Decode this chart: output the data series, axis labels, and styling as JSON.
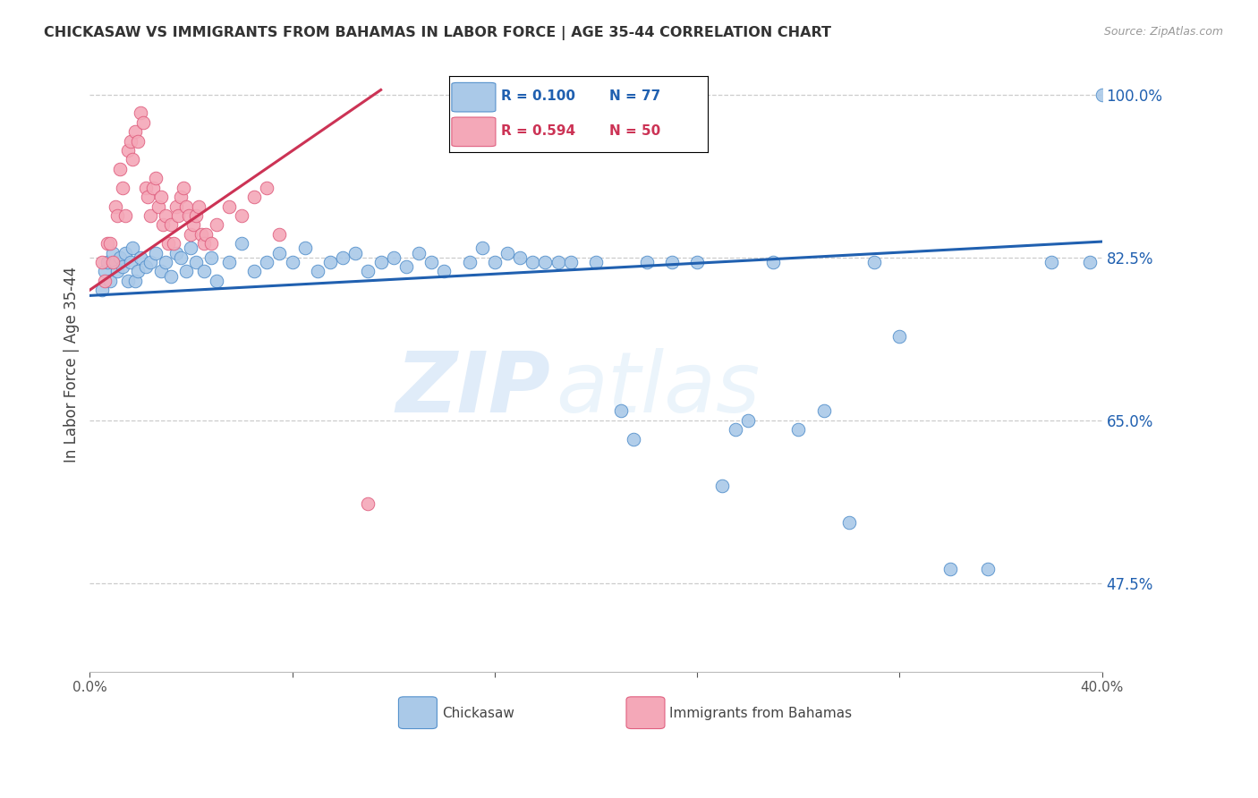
{
  "title": "CHICKASAW VS IMMIGRANTS FROM BAHAMAS IN LABOR FORCE | AGE 35-44 CORRELATION CHART",
  "source": "Source: ZipAtlas.com",
  "ylabel": "In Labor Force | Age 35-44",
  "xlim": [
    0.0,
    0.4
  ],
  "ylim": [
    0.38,
    1.04
  ],
  "yticks": [
    0.475,
    0.65,
    0.825,
    1.0
  ],
  "ytick_labels": [
    "47.5%",
    "65.0%",
    "82.5%",
    "100.0%"
  ],
  "xticks": [
    0.0,
    0.08,
    0.16,
    0.24,
    0.32,
    0.4
  ],
  "xtick_labels": [
    "0.0%",
    "",
    "",
    "",
    "",
    "40.0%"
  ],
  "blue_R": 0.1,
  "blue_N": 77,
  "pink_R": 0.594,
  "pink_N": 50,
  "blue_color": "#aac9e8",
  "pink_color": "#f4a8b8",
  "blue_edge_color": "#5591cc",
  "pink_edge_color": "#e06080",
  "blue_line_color": "#2060b0",
  "pink_line_color": "#cc3355",
  "blue_label": "Chickasaw",
  "pink_label": "Immigrants from Bahamas",
  "watermark_zip": "ZIP",
  "watermark_atlas": "atlas",
  "blue_x": [
    0.005,
    0.006,
    0.007,
    0.008,
    0.009,
    0.01,
    0.011,
    0.012,
    0.013,
    0.014,
    0.015,
    0.016,
    0.017,
    0.018,
    0.019,
    0.02,
    0.022,
    0.024,
    0.026,
    0.028,
    0.03,
    0.032,
    0.034,
    0.036,
    0.038,
    0.04,
    0.042,
    0.045,
    0.048,
    0.05,
    0.055,
    0.06,
    0.065,
    0.07,
    0.075,
    0.08,
    0.085,
    0.09,
    0.095,
    0.1,
    0.105,
    0.11,
    0.115,
    0.12,
    0.125,
    0.13,
    0.135,
    0.14,
    0.15,
    0.155,
    0.16,
    0.165,
    0.17,
    0.175,
    0.18,
    0.185,
    0.19,
    0.2,
    0.21,
    0.215,
    0.22,
    0.23,
    0.24,
    0.25,
    0.255,
    0.26,
    0.27,
    0.28,
    0.29,
    0.3,
    0.31,
    0.32,
    0.34,
    0.355,
    0.38,
    0.395,
    0.4
  ],
  "blue_y": [
    0.79,
    0.81,
    0.82,
    0.8,
    0.83,
    0.82,
    0.81,
    0.825,
    0.815,
    0.83,
    0.8,
    0.82,
    0.835,
    0.8,
    0.81,
    0.825,
    0.815,
    0.82,
    0.83,
    0.81,
    0.82,
    0.805,
    0.83,
    0.825,
    0.81,
    0.835,
    0.82,
    0.81,
    0.825,
    0.8,
    0.82,
    0.84,
    0.81,
    0.82,
    0.83,
    0.82,
    0.835,
    0.81,
    0.82,
    0.825,
    0.83,
    0.81,
    0.82,
    0.825,
    0.815,
    0.83,
    0.82,
    0.81,
    0.82,
    0.835,
    0.82,
    0.83,
    0.825,
    0.82,
    0.82,
    0.82,
    0.82,
    0.82,
    0.66,
    0.63,
    0.82,
    0.82,
    0.82,
    0.58,
    0.64,
    0.65,
    0.82,
    0.64,
    0.66,
    0.54,
    0.82,
    0.74,
    0.49,
    0.49,
    0.82,
    0.82,
    1.0
  ],
  "pink_x": [
    0.005,
    0.006,
    0.007,
    0.008,
    0.009,
    0.01,
    0.011,
    0.012,
    0.013,
    0.014,
    0.015,
    0.016,
    0.017,
    0.018,
    0.019,
    0.02,
    0.021,
    0.022,
    0.023,
    0.024,
    0.025,
    0.026,
    0.027,
    0.028,
    0.029,
    0.03,
    0.031,
    0.032,
    0.033,
    0.034,
    0.035,
    0.036,
    0.037,
    0.038,
    0.039,
    0.04,
    0.041,
    0.042,
    0.043,
    0.044,
    0.045,
    0.046,
    0.048,
    0.05,
    0.055,
    0.06,
    0.065,
    0.07,
    0.075,
    0.11
  ],
  "pink_y": [
    0.82,
    0.8,
    0.84,
    0.84,
    0.82,
    0.88,
    0.87,
    0.92,
    0.9,
    0.87,
    0.94,
    0.95,
    0.93,
    0.96,
    0.95,
    0.98,
    0.97,
    0.9,
    0.89,
    0.87,
    0.9,
    0.91,
    0.88,
    0.89,
    0.86,
    0.87,
    0.84,
    0.86,
    0.84,
    0.88,
    0.87,
    0.89,
    0.9,
    0.88,
    0.87,
    0.85,
    0.86,
    0.87,
    0.88,
    0.85,
    0.84,
    0.85,
    0.84,
    0.86,
    0.88,
    0.87,
    0.89,
    0.9,
    0.85,
    0.56
  ],
  "blue_trend_x": [
    0.0,
    0.4
  ],
  "blue_trend_y": [
    0.784,
    0.842
  ],
  "pink_trend_x": [
    0.0,
    0.115
  ],
  "pink_trend_y": [
    0.79,
    1.005
  ]
}
